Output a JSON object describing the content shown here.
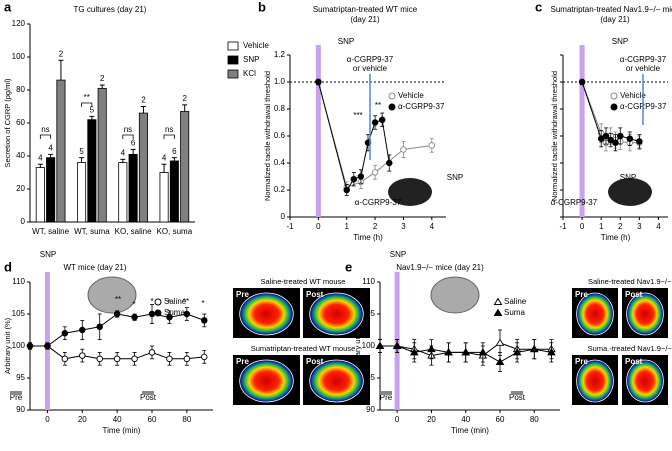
{
  "panel_labels": [
    "a",
    "b",
    "c",
    "d",
    "e"
  ],
  "chart_data": [
    {
      "type": "bar",
      "title": [
        "TG cultures (day 21)"
      ],
      "ylabel": "Secretion of CGRP (pg/ml)",
      "categories": [
        "WT, saline",
        "WT, suma",
        "KO, saline",
        "KO, suma"
      ],
      "ylim": [
        0,
        120
      ],
      "yticks": [
        0,
        20,
        40,
        60,
        80,
        100,
        120
      ],
      "series": [
        {
          "name": "Vehicle",
          "color": "#ffffff",
          "values": [
            33,
            36,
            36,
            30
          ],
          "errors": [
            2,
            3,
            2,
            5
          ],
          "n": [
            4,
            5,
            4,
            4
          ]
        },
        {
          "name": "SNP",
          "color": "#000000",
          "values": [
            39,
            62,
            41,
            37
          ],
          "errors": [
            2,
            2,
            3,
            2
          ],
          "n": [
            4,
            5,
            6,
            6
          ]
        },
        {
          "name": "KCl",
          "color": "#808080",
          "values": [
            86,
            81,
            66,
            67
          ],
          "errors": [
            12,
            2,
            4,
            4
          ],
          "n": [
            2,
            2,
            2,
            2
          ]
        }
      ],
      "annotations": [
        "ns",
        "**",
        "ns",
        "ns"
      ],
      "legend": "upper right"
    },
    {
      "type": "line",
      "title": [
        "Sumatriptan-treated WT mice",
        "(day 21)"
      ],
      "xlabel": "Time (h)",
      "ylabel": "Normalized tactile withdrawal threshold",
      "xlim": [
        -1,
        4.5
      ],
      "xticks": [
        -1,
        0,
        1,
        2,
        3,
        4
      ],
      "ylim": [
        0,
        1.2
      ],
      "yticks": [
        0,
        0.2,
        0.4,
        0.6,
        0.8,
        {
          "value": 1,
          "label": "1.0"
        },
        1.2
      ],
      "hline": 1,
      "event_x": 0,
      "series": [
        {
          "name": "Vehicle",
          "color": "#888888",
          "marker": "circle",
          "filled": false,
          "x": [
            0,
            1,
            1.5,
            2,
            3,
            4
          ],
          "values": [
            1,
            0.22,
            0.26,
            0.33,
            0.5,
            0.53
          ],
          "errors": [
            0.02,
            0.04,
            0.05,
            0.05,
            0.06,
            0.05
          ]
        },
        {
          "name": "α-CGRP9-37",
          "color": "#000000",
          "marker": "circle",
          "filled": true,
          "x": [
            0,
            1,
            1.25,
            1.5,
            1.75,
            2,
            2.25,
            2.5
          ],
          "values": [
            1,
            0.2,
            0.28,
            0.3,
            0.55,
            0.7,
            0.72,
            0.4
          ],
          "errors": [
            0.02,
            0.04,
            0.05,
            0.05,
            0.06,
            0.05,
            0.05,
            0.06
          ]
        }
      ],
      "annotations": [
        "SNP",
        "α-CGRP9-37",
        "or vehicle",
        "***",
        "**",
        "SNP",
        "α-CGRP9-37"
      ]
    },
    {
      "type": "line",
      "title": [
        "Sumatriptan-treated Nav1.9−/− mice",
        "(day 21)"
      ],
      "xlabel": "Time (h)",
      "ylabel": "Normalized tactile withdrawal threshold",
      "xlim": [
        -1,
        4.5
      ],
      "xticks": [
        -1,
        0,
        1,
        2,
        3,
        4
      ],
      "ylim": [
        0,
        1.2
      ],
      "yticks": [
        0,
        0.2,
        0.4,
        0.6,
        0.8,
        1,
        1.2
      ],
      "ytick_labels": false,
      "hline": 1,
      "event_x": 0,
      "series": [
        {
          "name": "Vehicle",
          "color": "#888888",
          "marker": "circle",
          "filled": false,
          "x": [
            0,
            1,
            1.25,
            1.5,
            1.75,
            2,
            2.5,
            3
          ],
          "values": [
            1,
            0.62,
            0.55,
            0.6,
            0.57,
            0.56,
            0.55,
            0.55
          ],
          "errors": [
            0.02,
            0.07,
            0.06,
            0.06,
            0.06,
            0.06,
            0.06,
            0.05
          ]
        },
        {
          "name": "α-CGRP9-37",
          "color": "#000000",
          "marker": "circle",
          "filled": true,
          "x": [
            0,
            1,
            1.25,
            1.5,
            1.75,
            2,
            2.5,
            3
          ],
          "values": [
            1,
            0.58,
            0.6,
            0.57,
            0.55,
            0.6,
            0.58,
            0.56
          ],
          "errors": [
            0.02,
            0.06,
            0.06,
            0.05,
            0.06,
            0.06,
            0.05,
            0.05
          ]
        }
      ],
      "annotations": [
        "SNP",
        "α-CGRP9-37",
        "or vehicle",
        "SNP",
        "α-CGRP9-37"
      ]
    },
    {
      "type": "line",
      "title": [
        "WT mice (day 21)"
      ],
      "xlabel": "Time (min)",
      "ylabel": "Arbitrary unit (%)",
      "xlim": [
        -10,
        95
      ],
      "xticks": [
        0,
        20,
        40,
        60,
        80
      ],
      "ylim": [
        90,
        110
      ],
      "yticks": [
        90,
        95,
        100,
        105,
        110
      ],
      "event_x": 0,
      "series": [
        {
          "name": "Saline",
          "color": "#000000",
          "marker": "circle",
          "filled": false,
          "x": [
            -10,
            0,
            10,
            20,
            30,
            40,
            50,
            60,
            70,
            80,
            90
          ],
          "values": [
            100,
            100,
            98,
            98.5,
            98,
            98,
            98,
            99,
            98,
            98,
            98.3
          ],
          "errors": [
            0.5,
            0.5,
            1,
            1,
            1,
            1,
            1,
            1,
            1,
            1,
            1
          ]
        },
        {
          "name": "Suma",
          "color": "#000000",
          "marker": "circle",
          "filled": true,
          "x": [
            -10,
            0,
            10,
            20,
            30,
            40,
            50,
            60,
            70,
            80,
            90
          ],
          "values": [
            100,
            100,
            102,
            102.5,
            103,
            105,
            104.5,
            105,
            104.5,
            105,
            104
          ],
          "errors": [
            0.5,
            0.5,
            1,
            1.5,
            2,
            0.5,
            0.5,
            1.5,
            1,
            1,
            1
          ]
        }
      ],
      "annotations": [
        "SNP",
        "Pre",
        "Post",
        "**",
        "*",
        "*",
        "*",
        "**",
        "*"
      ]
    },
    {
      "type": "line",
      "title": [
        "Nav1.9−/− mice (day 21)"
      ],
      "xlabel": "Time (min)",
      "ylabel": "Arbitrary unit (%)",
      "xlim": [
        -10,
        95
      ],
      "xticks": [
        0,
        20,
        40,
        60,
        80
      ],
      "ylim": [
        90,
        110
      ],
      "yticks": [
        90,
        95,
        100,
        105,
        110
      ],
      "event_x": 0,
      "series": [
        {
          "name": "Saline",
          "color": "#000000",
          "marker": "triangle",
          "filled": false,
          "x": [
            -10,
            0,
            10,
            20,
            30,
            40,
            50,
            60,
            70,
            80,
            90
          ],
          "values": [
            100,
            100,
            99.5,
            98.5,
            99,
            99,
            98.5,
            100.5,
            99.5,
            99.5,
            99.5
          ],
          "errors": [
            1,
            1,
            1.5,
            1.5,
            1.5,
            1.5,
            1.5,
            2,
            1.5,
            1.5,
            1.5
          ]
        },
        {
          "name": "Suma",
          "color": "#000000",
          "marker": "triangle",
          "filled": true,
          "x": [
            -10,
            0,
            10,
            20,
            30,
            40,
            50,
            60,
            70,
            80,
            90
          ],
          "values": [
            100,
            100,
            99,
            99.5,
            99,
            99,
            99,
            97.5,
            99,
            99.5,
            99
          ],
          "errors": [
            1,
            1,
            1.5,
            1.5,
            1.5,
            1.5,
            1.5,
            1.5,
            1.5,
            1.5,
            1.5
          ]
        }
      ],
      "annotations": [
        "SNP",
        "Pre",
        "Post"
      ]
    }
  ],
  "images": [
    {
      "title": "Saline-treated WT mouse",
      "labels": [
        "Pre",
        "Post"
      ]
    },
    {
      "title": "Sumatriptan-treated WT mouse",
      "labels": [
        "Pre",
        "Post"
      ]
    },
    {
      "title": "Saline-treated Nav1.9−/− mouse",
      "labels": [
        "Pre",
        "Post"
      ]
    },
    {
      "title": "Suma.-treated Nav1.9−/− mouse",
      "labels": [
        "Pre",
        "Post"
      ]
    }
  ]
}
